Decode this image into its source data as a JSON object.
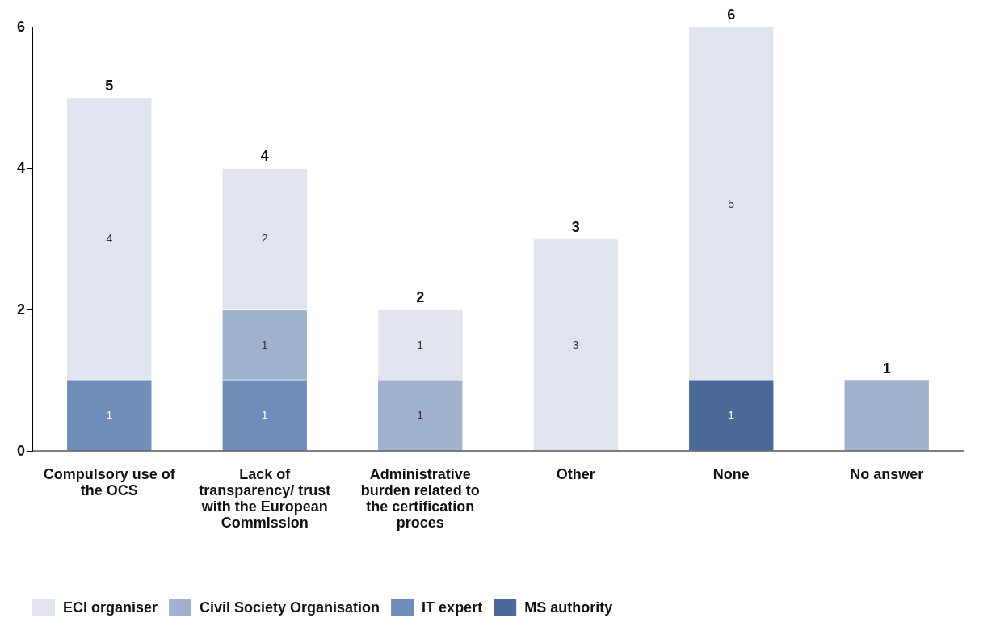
{
  "chart_data": {
    "type": "bar",
    "stacked": true,
    "categories": [
      "Compulsory use of the OCS",
      "Lack of transparency/ trust with the European Commission",
      "Administrative burden related to the certification proces",
      "Other",
      "None",
      "No answer"
    ],
    "series": [
      {
        "name": "MS authority",
        "color": "#4a6a9a",
        "values": [
          null,
          null,
          null,
          null,
          1,
          null
        ],
        "value_labels": [
          null,
          null,
          null,
          null,
          "1",
          null
        ]
      },
      {
        "name": "IT expert",
        "color": "#6e8db9",
        "values": [
          1,
          1,
          null,
          null,
          null,
          null
        ],
        "value_labels": [
          "1",
          "1",
          null,
          null,
          null,
          null
        ]
      },
      {
        "name": "Civil Society Organisation",
        "color": "#a0b2ce",
        "values": [
          null,
          1,
          1,
          null,
          null,
          1
        ],
        "value_labels": [
          null,
          "1",
          "1",
          null,
          null,
          null
        ]
      },
      {
        "name": "ECI organiser",
        "color": "#dfe4ee",
        "values": [
          4,
          2,
          1,
          3,
          5,
          null
        ],
        "value_labels": [
          "4",
          "2",
          "1",
          "3",
          "5",
          null
        ]
      }
    ],
    "totals": [
      "5",
      "4",
      "2",
      "3",
      "6",
      "1"
    ],
    "ylim": [
      0,
      6
    ],
    "yticks": [
      0,
      2,
      4,
      6
    ],
    "grid": false,
    "legend": "bottom left"
  }
}
